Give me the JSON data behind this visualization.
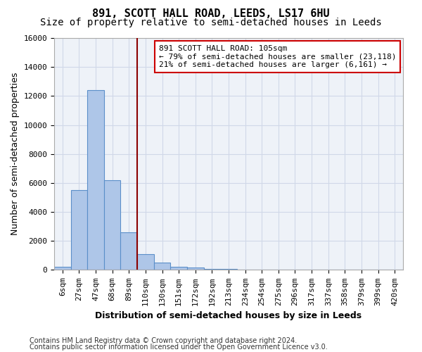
{
  "title1": "891, SCOTT HALL ROAD, LEEDS, LS17 6HU",
  "title2": "Size of property relative to semi-detached houses in Leeds",
  "xlabel": "Distribution of semi-detached houses by size in Leeds",
  "ylabel": "Number of semi-detached properties",
  "bin_labels": [
    "6sqm",
    "27sqm",
    "47sqm",
    "68sqm",
    "89sqm",
    "110sqm",
    "130sqm",
    "151sqm",
    "172sqm",
    "192sqm",
    "213sqm",
    "234sqm",
    "254sqm",
    "275sqm",
    "296sqm",
    "317sqm",
    "337sqm",
    "358sqm",
    "379sqm",
    "399sqm",
    "420sqm"
  ],
  "bar_heights": [
    200,
    5500,
    12400,
    6200,
    2600,
    1100,
    500,
    200,
    150,
    80,
    60,
    0,
    0,
    0,
    0,
    0,
    0,
    0,
    0,
    0,
    0
  ],
  "bar_color": "#aec6e8",
  "bar_edge_color": "#5b8fc9",
  "vline_x": 4.5,
  "annotation_title": "891 SCOTT HALL ROAD: 105sqm",
  "annotation_line1": "← 79% of semi-detached houses are smaller (23,118)",
  "annotation_line2": "21% of semi-detached houses are larger (6,161) →",
  "annotation_box_color": "#ffffff",
  "annotation_box_edge_color": "#cc0000",
  "vline_color": "#8b0000",
  "ylim": [
    0,
    16000
  ],
  "yticks": [
    0,
    2000,
    4000,
    6000,
    8000,
    10000,
    12000,
    14000,
    16000
  ],
  "grid_color": "#d0d8e8",
  "bg_color": "#eef2f8",
  "footer1": "Contains HM Land Registry data © Crown copyright and database right 2024.",
  "footer2": "Contains public sector information licensed under the Open Government Licence v3.0.",
  "title1_fontsize": 11,
  "title2_fontsize": 10,
  "xlabel_fontsize": 9,
  "ylabel_fontsize": 9,
  "tick_fontsize": 8,
  "annotation_fontsize": 8,
  "footer_fontsize": 7
}
